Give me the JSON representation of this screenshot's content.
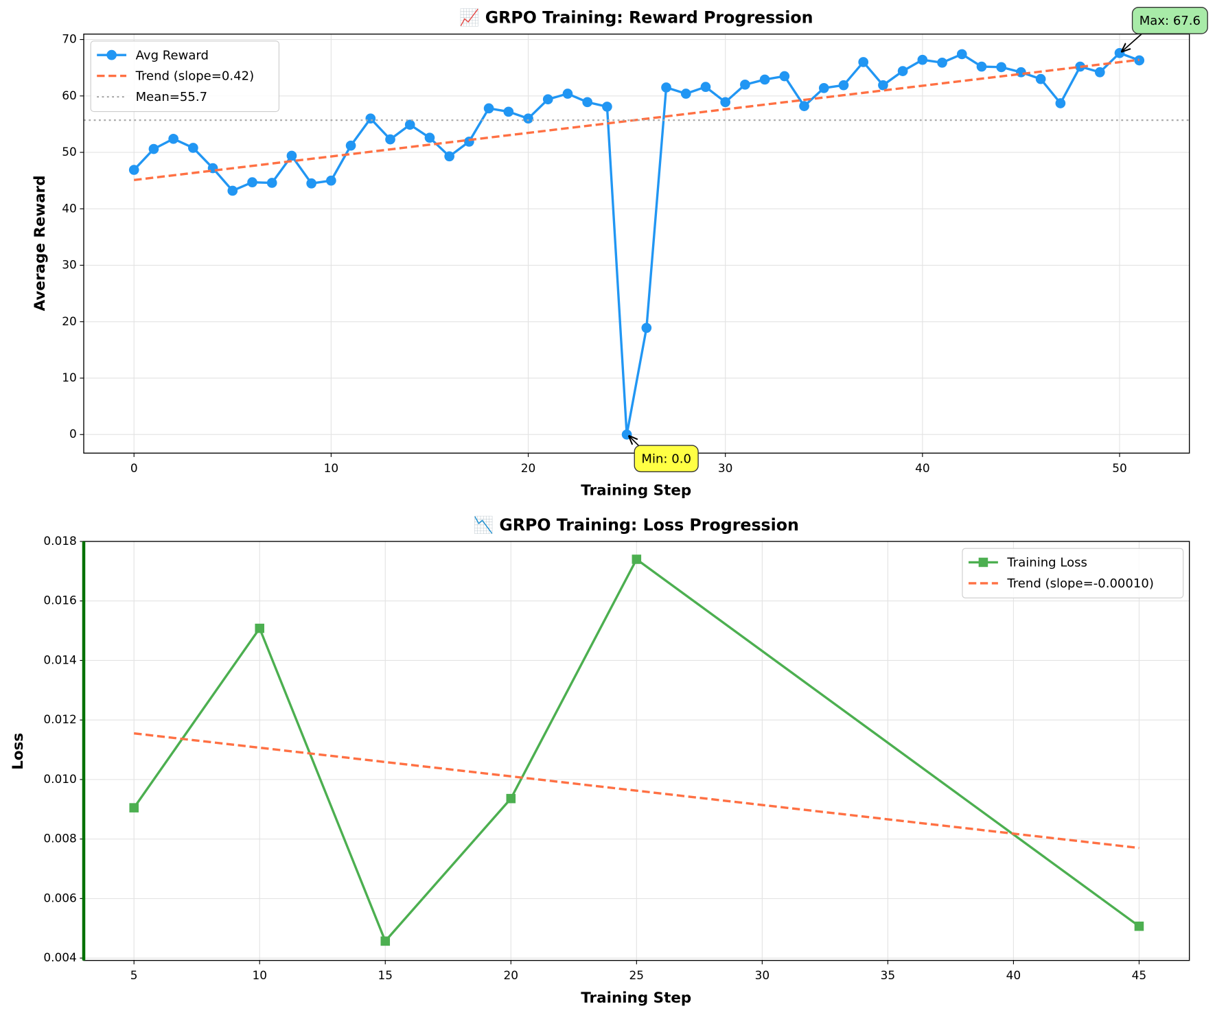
{
  "chart_data": [
    {
      "type": "line",
      "title": "📈 GRPO Training: Reward Progression",
      "xlabel": "Training Step",
      "ylabel": "Average Reward",
      "xlim": [
        -2.55,
        53.54
      ],
      "ylim": [
        -3.29,
        70.96
      ],
      "xticks": [
        0,
        10,
        20,
        30,
        40,
        50
      ],
      "yticks": [
        0,
        10,
        20,
        30,
        40,
        50,
        60,
        70
      ],
      "grid": true,
      "legend": "upper-left",
      "series": [
        {
          "name": "Avg Reward",
          "color": "#2196F3",
          "marker": "circle",
          "dash": "solid",
          "x": [
            0,
            1,
            2,
            3,
            4,
            5,
            6,
            7,
            8,
            9,
            10,
            11,
            12,
            13,
            14,
            15,
            16,
            17,
            18,
            19,
            20,
            21,
            22,
            23,
            24,
            25,
            26,
            27,
            28,
            29,
            30,
            31,
            32,
            33,
            34,
            35,
            36,
            37,
            38,
            39,
            40,
            41,
            42,
            43,
            44,
            45,
            46,
            47,
            48,
            49,
            50,
            51
          ],
          "values": [
            46.9,
            50.6,
            52.4,
            50.8,
            47.2,
            43.2,
            44.7,
            44.6,
            49.4,
            44.5,
            45.0,
            51.2,
            56.0,
            52.3,
            54.9,
            52.6,
            49.3,
            51.9,
            57.8,
            57.2,
            56.0,
            59.4,
            60.4,
            58.9,
            58.1,
            0.0,
            18.9,
            61.5,
            60.4,
            61.6,
            58.9,
            62.0,
            62.9,
            63.5,
            58.2,
            61.4,
            61.9,
            66.0,
            61.9,
            64.4,
            66.4,
            65.9,
            67.4,
            65.2,
            65.1,
            64.2,
            63.0,
            58.7,
            65.2,
            64.2,
            67.6,
            66.3
          ]
        },
        {
          "name": "Trend (slope=0.42)",
          "color": "#FF7043",
          "dash": "dashed",
          "x": [
            0,
            51
          ],
          "values": [
            45.1,
            66.4
          ]
        },
        {
          "name": "Mean=55.7",
          "color": "#AAAAAA",
          "dash": "dotted",
          "hline": true,
          "values": [
            55.7
          ]
        }
      ],
      "annotations": [
        {
          "text": "Min: 0.0",
          "x": 25,
          "y": 0.0,
          "color": "#FFFF44"
        },
        {
          "text": "Max: 67.6",
          "x": 50,
          "y": 67.6,
          "color": "#A8EBA8"
        }
      ]
    },
    {
      "type": "line",
      "title": "📉 GRPO Training: Loss Progression",
      "xlabel": "Training Step",
      "ylabel": "Loss",
      "xlim": [
        3,
        47
      ],
      "ylim": [
        0.00392,
        0.018
      ],
      "xticks": [
        5,
        10,
        15,
        20,
        25,
        30,
        35,
        40,
        45
      ],
      "yticks": [
        0.004,
        0.006,
        0.008,
        {
          "value": 0.01,
          "label": "0.010"
        },
        0.012,
        0.014,
        0.016,
        0.018
      ],
      "grid": true,
      "legend": "upper-right",
      "left_spine_color": "#007000",
      "series": [
        {
          "name": "Training Loss",
          "color": "#4CAF50",
          "marker": "square",
          "dash": "solid",
          "x": [
            5,
            10,
            15,
            20,
            25,
            45
          ],
          "values": [
            0.00905,
            0.01508,
            0.00457,
            0.00936,
            0.0174,
            0.00507
          ]
        },
        {
          "name": "Trend (slope=-0.00010)",
          "color": "#FF7043",
          "dash": "dashed",
          "x": [
            5,
            45
          ],
          "values": [
            0.01155,
            0.0077
          ]
        }
      ]
    }
  ]
}
